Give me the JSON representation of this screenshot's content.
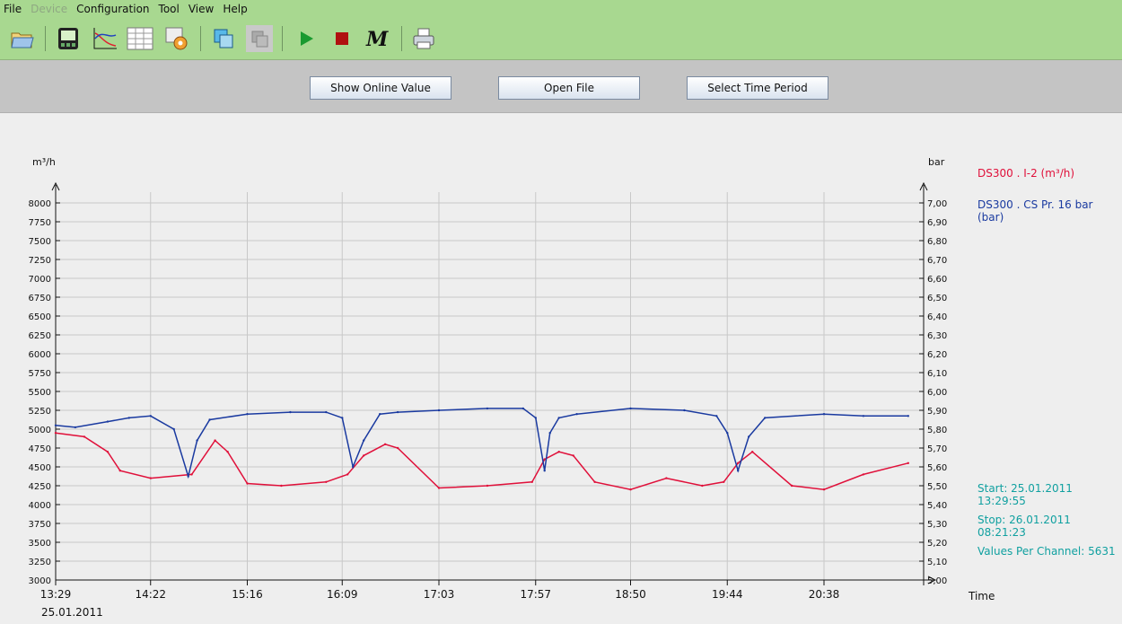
{
  "menu": [
    "File",
    "Device",
    "Configuration",
    "Tool",
    "View",
    "Help"
  ],
  "menu_disabled": [
    "Device"
  ],
  "toolbar_icons": [
    "open-folder-icon",
    "device-monitor-icon",
    "chart-curve-icon",
    "table-grid-icon",
    "settings-tools-icon",
    "window-copy-icon",
    "window-stack-icon",
    "play-icon",
    "stop-icon",
    "macro-m-icon",
    "printer-icon"
  ],
  "buttons": {
    "online": "Show Online Value",
    "open": "Open File",
    "period": "Select Time Period"
  },
  "legend": [
    {
      "name": "DS300 . I-2 (m³/h)",
      "color": "#e0103a"
    },
    {
      "name": "DS300 . CS Pr. 16 bar (bar)",
      "color": "#1a3aa0"
    }
  ],
  "info": {
    "start": "Start: 25.01.2011 13:29:55",
    "stop": "Stop: 26.01.2011 08:21:23",
    "values": "Values Per Channel: 5631"
  },
  "chart_data": {
    "type": "line",
    "left_axis_unit": "m³/h",
    "right_axis_unit": "bar",
    "x_axis_label": "Time",
    "x_ticks": [
      "13:29",
      "14:22",
      "15:16",
      "16:09",
      "17:03",
      "17:57",
      "18:50",
      "19:44",
      "20:38"
    ],
    "date_label": "25.01.2011",
    "ylim_left": [
      3000,
      8000
    ],
    "left_ticks": [
      "8000",
      "7750",
      "7500",
      "7250",
      "7000",
      "6750",
      "6500",
      "6250",
      "6000",
      "5750",
      "5500",
      "5250",
      "5000",
      "4750",
      "4500",
      "4250",
      "4000",
      "3750",
      "3500",
      "3250",
      "3000"
    ],
    "ylim_right": [
      5.0,
      7.0
    ],
    "right_ticks": [
      "7,00",
      "6,90",
      "6,80",
      "6,70",
      "6,60",
      "6,50",
      "6,40",
      "6,30",
      "6,20",
      "6,10",
      "6,00",
      "5,90",
      "5,80",
      "5,70",
      "5,60",
      "5,50",
      "5,40",
      "5,30",
      "5,20",
      "5,10",
      "5,00"
    ],
    "grid": true,
    "series": [
      {
        "name": "DS300 . I-2 (m³/h)",
        "axis": "left",
        "color": "#e0103a",
        "x": [
          "13:29",
          "13:45",
          "13:58",
          "14:05",
          "14:22",
          "14:45",
          "14:58",
          "15:05",
          "15:16",
          "15:35",
          "16:00",
          "16:12",
          "16:21",
          "16:33",
          "16:40",
          "17:03",
          "17:30",
          "17:55",
          "18:02",
          "18:10",
          "18:18",
          "18:30",
          "18:50",
          "19:10",
          "19:30",
          "19:42",
          "19:50",
          "19:58",
          "20:20",
          "20:38",
          "21:00",
          "21:25"
        ],
        "values": [
          4950,
          4900,
          4700,
          4450,
          4350,
          4400,
          4850,
          4700,
          4280,
          4250,
          4300,
          4400,
          4650,
          4800,
          4750,
          4220,
          4250,
          4300,
          4600,
          4700,
          4650,
          4300,
          4200,
          4350,
          4250,
          4300,
          4550,
          4700,
          4250,
          4200,
          4400,
          4550
        ]
      },
      {
        "name": "DS300 . CS Pr. 16 bar (bar)",
        "axis": "right",
        "color": "#1a3aa0",
        "x": [
          "13:29",
          "13:40",
          "13:58",
          "14:10",
          "14:22",
          "14:35",
          "14:43",
          "14:48",
          "14:55",
          "15:16",
          "15:40",
          "16:00",
          "16:09",
          "16:15",
          "16:21",
          "16:30",
          "16:40",
          "17:03",
          "17:30",
          "17:50",
          "17:57",
          "18:02",
          "18:05",
          "18:10",
          "18:20",
          "18:50",
          "19:20",
          "19:38",
          "19:44",
          "19:50",
          "19:56",
          "20:05",
          "20:38",
          "21:00",
          "21:25"
        ],
        "values": [
          5.82,
          5.81,
          5.84,
          5.86,
          5.87,
          5.8,
          5.55,
          5.74,
          5.85,
          5.88,
          5.89,
          5.89,
          5.86,
          5.6,
          5.74,
          5.88,
          5.89,
          5.9,
          5.91,
          5.91,
          5.86,
          5.58,
          5.78,
          5.86,
          5.88,
          5.91,
          5.9,
          5.87,
          5.78,
          5.58,
          5.76,
          5.86,
          5.88,
          5.87,
          5.87
        ]
      }
    ]
  }
}
